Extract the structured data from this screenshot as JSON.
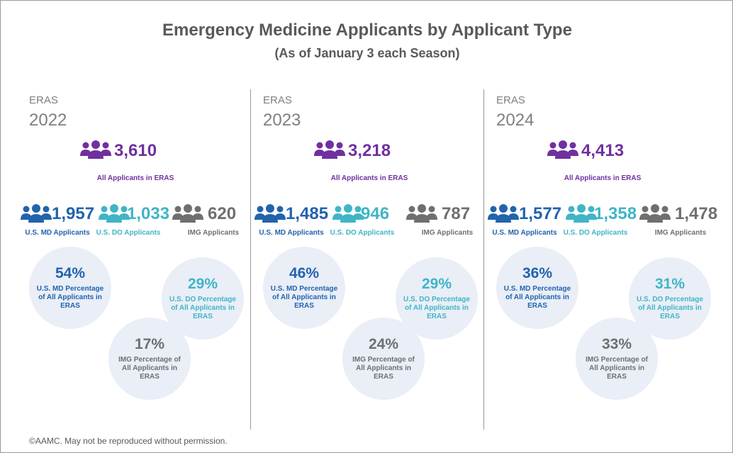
{
  "title": "Emergency Medicine Applicants by Applicant Type",
  "subtitle": "(As of January 3 each Season)",
  "panels": [
    {
      "system": "ERAS",
      "year": "2022",
      "total": {
        "value": "3,610",
        "label": "All Applicants in ERAS"
      },
      "groups": [
        {
          "value": "1,957",
          "label": "U.S. MD Applicants"
        },
        {
          "value": "1,033",
          "label": "U.S. DO Applicants"
        },
        {
          "value": "620",
          "label": "IMG Applicants"
        }
      ],
      "shares": [
        {
          "percent": "54%",
          "label": "U.S. MD Percentage of All Applicants in ERAS"
        },
        {
          "percent": "29%",
          "label": "U.S. DO Percentage of All Applicants in ERAS"
        },
        {
          "percent": "17%",
          "label": "IMG Percentage of All Applicants in ERAS"
        }
      ]
    },
    {
      "system": "ERAS",
      "year": "2023",
      "total": {
        "value": "3,218",
        "label": "All Applicants in ERAS"
      },
      "groups": [
        {
          "value": "1,485",
          "label": "U.S. MD Applicants"
        },
        {
          "value": "946",
          "label": "U.S. DO Applicants"
        },
        {
          "value": "787",
          "label": "IMG Applicants"
        }
      ],
      "shares": [
        {
          "percent": "46%",
          "label": "U.S. MD Percentage of All Applicants in ERAS"
        },
        {
          "percent": "29%",
          "label": "U.S. DO Percentage of All Applicants in ERAS"
        },
        {
          "percent": "24%",
          "label": "IMG Percentage of All Applicants in ERAS"
        }
      ]
    },
    {
      "system": "ERAS",
      "year": "2024",
      "total": {
        "value": "4,413",
        "label": "All Applicants in ERAS"
      },
      "groups": [
        {
          "value": "1,577",
          "label": "U.S. MD Applicants"
        },
        {
          "value": "1,358",
          "label": "U.S. DO Applicants"
        },
        {
          "value": "1,478",
          "label": "IMG Applicants"
        }
      ],
      "shares": [
        {
          "percent": "36%",
          "label": "U.S. MD Percentage of All Applicants in ERAS"
        },
        {
          "percent": "31%",
          "label": "U.S. DO Percentage of All Applicants in ERAS"
        },
        {
          "percent": "33%",
          "label": "IMG Percentage of All Applicants in ERAS"
        }
      ]
    }
  ],
  "footer": "©AAMC. May not be reproduced without permission."
}
